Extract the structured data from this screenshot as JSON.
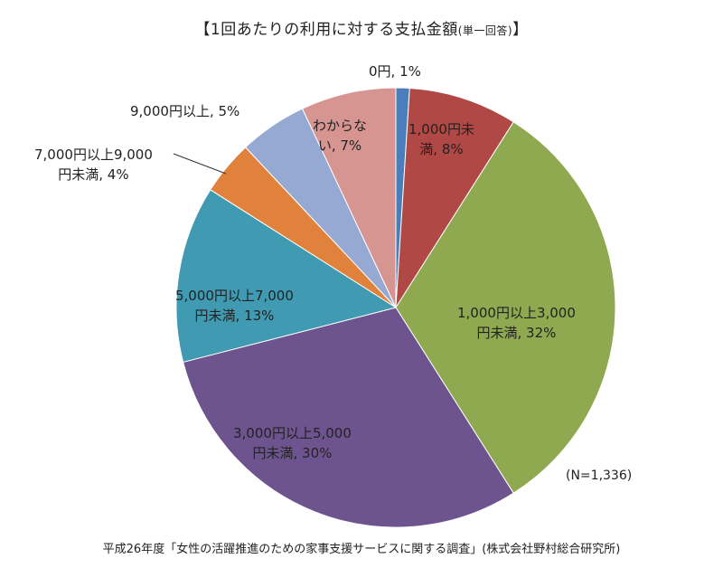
{
  "title": "【1回あたりの利用に対する支払金額",
  "title_suffix": "(単一回答)",
  "title_close": "】",
  "sample_size": "(N=1,336)",
  "source": "平成26年度「女性の活躍推進のための家事支援サービスに関する調査」(株式会社野村総合研究所)",
  "labels": {
    "l0": "0円, 1%",
    "l1a": "1,000円未",
    "l1b": "満, 8%",
    "l2a": "1,000円以上3,000",
    "l2b": "円未満, 32%",
    "l3a": "3,000円以上5,000",
    "l3b": "円未満, 30%",
    "l4a": "5,000円以上7,000",
    "l4b": "円未満, 13%",
    "l5a": "7,000円以上9,000",
    "l5b": "円未満, 4%",
    "l6": "9,000円以上, 5%",
    "l7a": "わからな",
    "l7b": "い, 7%"
  },
  "chart_data": {
    "type": "pie",
    "title": "【1回あたりの利用に対する支払金額(単一回答)】",
    "categories": [
      "0円",
      "1,000円未満",
      "1,000円以上3,000円未満",
      "3,000円以上5,000円未満",
      "5,000円以上7,000円未満",
      "7,000円以上9,000円未満",
      "9,000円以上",
      "わからない"
    ],
    "values": [
      1,
      8,
      32,
      30,
      13,
      4,
      5,
      7
    ],
    "unit": "%",
    "colors": [
      "#4a7ebb",
      "#b04845",
      "#8ea94f",
      "#6e548e",
      "#3f9ab2",
      "#e0823c",
      "#95a9d3",
      "#d79592"
    ],
    "start_angle": "top, clockwise",
    "annotation": "(N=1,336)"
  }
}
